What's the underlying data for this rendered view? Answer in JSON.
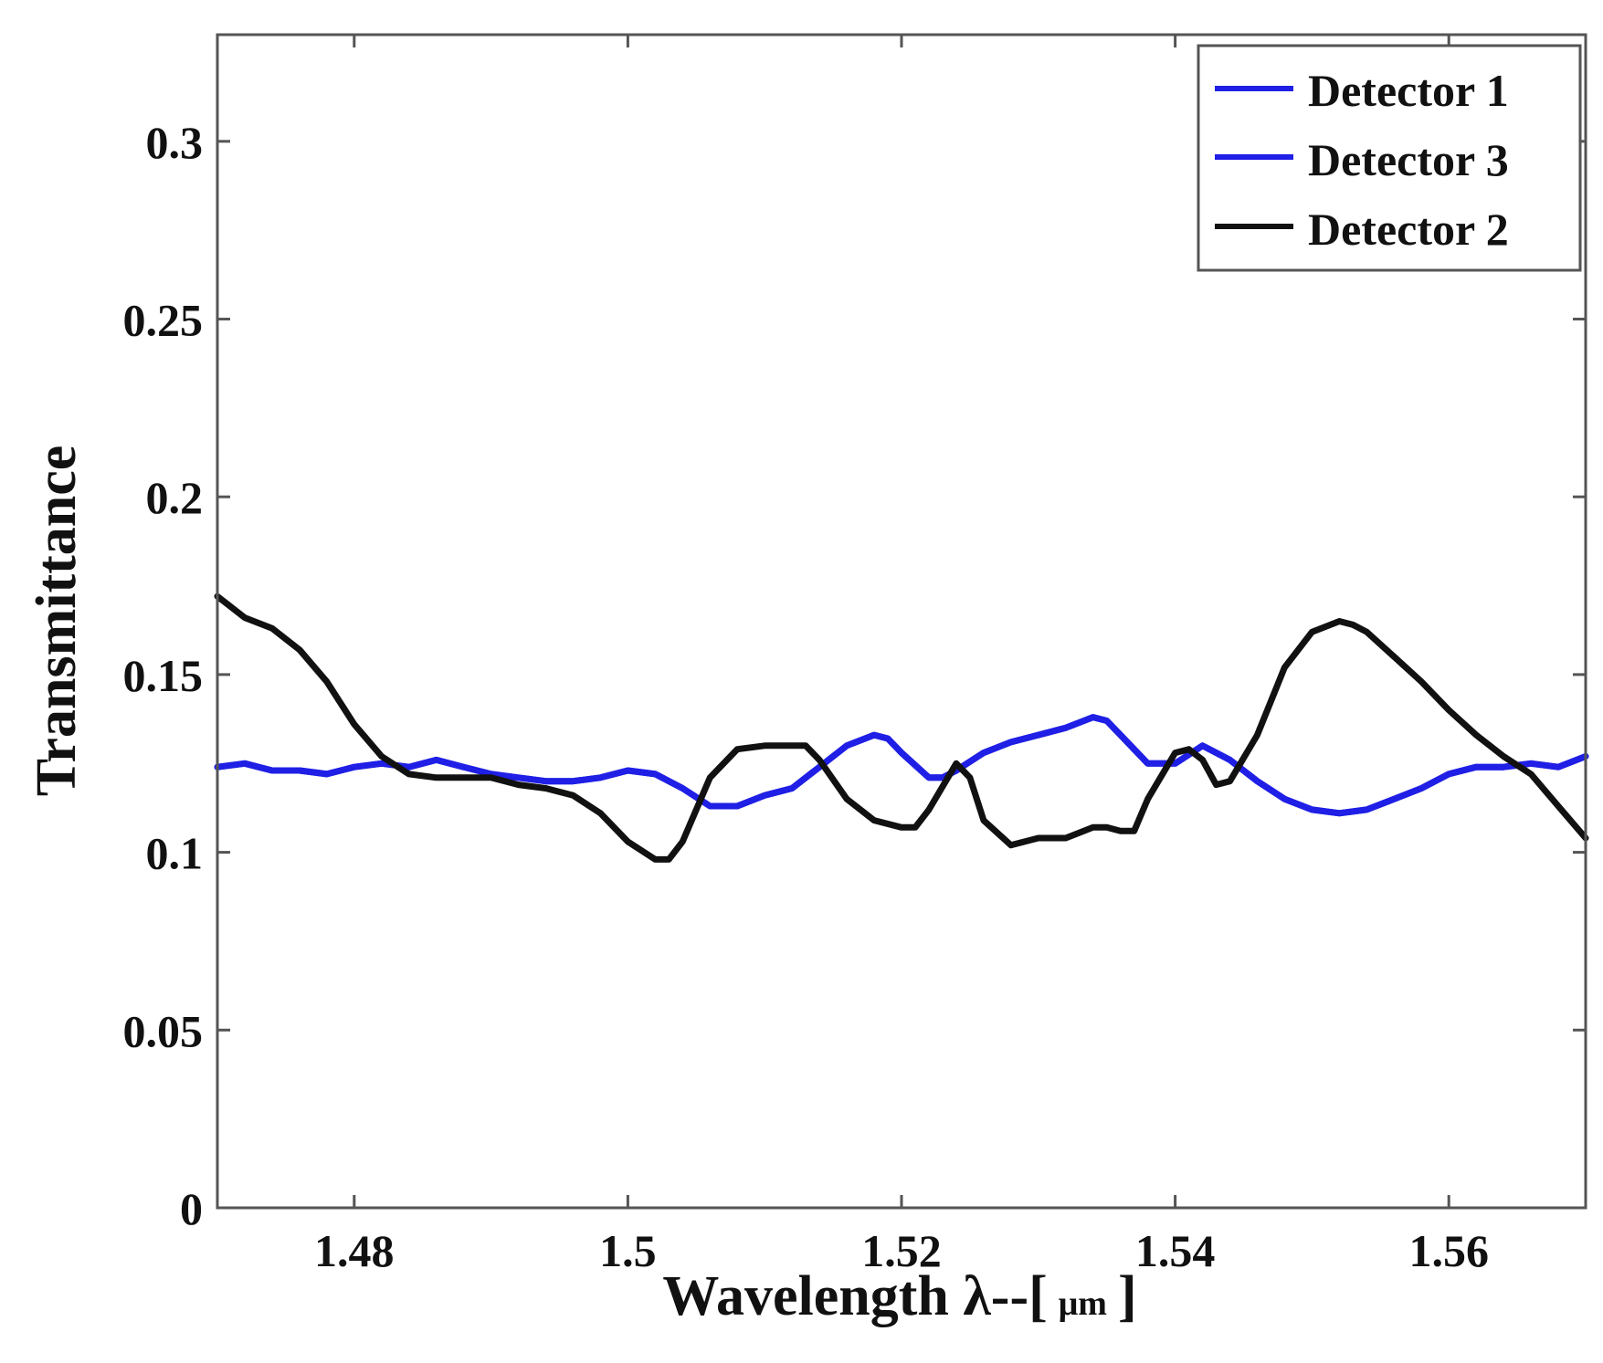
{
  "chart_data": {
    "type": "line",
    "xlabel_main": "Wavelength λ--[",
    "xlabel_unit": "μm",
    "xlabel_close": "]",
    "ylabel": "Transmittance",
    "xlim": [
      1.47,
      1.57
    ],
    "ylim": [
      0,
      0.33
    ],
    "x_ticks": [
      1.48,
      1.5,
      1.52,
      1.54,
      1.56
    ],
    "x_tick_labels": [
      "1.48",
      "1.5",
      "1.52",
      "1.54",
      "1.56"
    ],
    "y_ticks": [
      0,
      0.05,
      0.1,
      0.15,
      0.2,
      0.25,
      0.3
    ],
    "y_tick_labels": [
      "0",
      "0.05",
      "0.1",
      "0.15",
      "0.2",
      "0.25",
      "0.3"
    ],
    "grid": false,
    "legend_position": "top-right",
    "series": [
      {
        "name": "Detector 1",
        "color": "#1f1fe6",
        "x": [
          1.47,
          1.472,
          1.474,
          1.476,
          1.478,
          1.48,
          1.482,
          1.484,
          1.486,
          1.488,
          1.49,
          1.492,
          1.494,
          1.496,
          1.498,
          1.5,
          1.502,
          1.504,
          1.506,
          1.508,
          1.51,
          1.512,
          1.514,
          1.516,
          1.518,
          1.519,
          1.52,
          1.522,
          1.523,
          1.524,
          1.526,
          1.528,
          1.53,
          1.532,
          1.534,
          1.535,
          1.536,
          1.538,
          1.54,
          1.542,
          1.544,
          1.546,
          1.548,
          1.55,
          1.552,
          1.554,
          1.556,
          1.558,
          1.56,
          1.562,
          1.564,
          1.566,
          1.568,
          1.57
        ],
        "values": [
          0.124,
          0.125,
          0.123,
          0.123,
          0.122,
          0.124,
          0.125,
          0.124,
          0.126,
          0.124,
          0.122,
          0.121,
          0.12,
          0.12,
          0.121,
          0.123,
          0.122,
          0.118,
          0.113,
          0.113,
          0.116,
          0.118,
          0.124,
          0.13,
          0.133,
          0.132,
          0.128,
          0.121,
          0.121,
          0.123,
          0.128,
          0.131,
          0.133,
          0.135,
          0.138,
          0.137,
          0.133,
          0.125,
          0.125,
          0.13,
          0.126,
          0.12,
          0.115,
          0.112,
          0.111,
          0.112,
          0.115,
          0.118,
          0.122,
          0.124,
          0.124,
          0.125,
          0.124,
          0.127
        ]
      },
      {
        "name": "Detector 3",
        "color": "#1f1fe6",
        "x": [
          1.47,
          1.472,
          1.474,
          1.476,
          1.478,
          1.48,
          1.482,
          1.484,
          1.486,
          1.488,
          1.49,
          1.492,
          1.494,
          1.496,
          1.498,
          1.5,
          1.502,
          1.504,
          1.506,
          1.508,
          1.51,
          1.512,
          1.514,
          1.516,
          1.518,
          1.519,
          1.52,
          1.522,
          1.523,
          1.524,
          1.526,
          1.528,
          1.53,
          1.532,
          1.534,
          1.535,
          1.536,
          1.538,
          1.54,
          1.542,
          1.544,
          1.546,
          1.548,
          1.55,
          1.552,
          1.554,
          1.556,
          1.558,
          1.56,
          1.562,
          1.564,
          1.566,
          1.568,
          1.57
        ],
        "values": [
          0.124,
          0.125,
          0.123,
          0.123,
          0.122,
          0.124,
          0.125,
          0.124,
          0.126,
          0.124,
          0.122,
          0.121,
          0.12,
          0.12,
          0.121,
          0.123,
          0.122,
          0.118,
          0.113,
          0.113,
          0.116,
          0.118,
          0.124,
          0.13,
          0.133,
          0.132,
          0.128,
          0.121,
          0.121,
          0.123,
          0.128,
          0.131,
          0.133,
          0.135,
          0.138,
          0.137,
          0.133,
          0.125,
          0.125,
          0.13,
          0.126,
          0.12,
          0.115,
          0.112,
          0.111,
          0.112,
          0.115,
          0.118,
          0.122,
          0.124,
          0.124,
          0.125,
          0.124,
          0.127
        ]
      },
      {
        "name": "Detector 2",
        "color": "#111111",
        "x": [
          1.47,
          1.472,
          1.474,
          1.476,
          1.478,
          1.48,
          1.482,
          1.484,
          1.486,
          1.488,
          1.49,
          1.492,
          1.494,
          1.496,
          1.498,
          1.5,
          1.502,
          1.503,
          1.504,
          1.506,
          1.508,
          1.51,
          1.512,
          1.513,
          1.514,
          1.516,
          1.518,
          1.52,
          1.521,
          1.522,
          1.524,
          1.525,
          1.526,
          1.528,
          1.53,
          1.532,
          1.534,
          1.535,
          1.536,
          1.537,
          1.538,
          1.54,
          1.541,
          1.542,
          1.543,
          1.544,
          1.546,
          1.548,
          1.55,
          1.552,
          1.553,
          1.554,
          1.556,
          1.558,
          1.56,
          1.562,
          1.564,
          1.566,
          1.568,
          1.57
        ],
        "values": [
          0.172,
          0.166,
          0.163,
          0.157,
          0.148,
          0.136,
          0.127,
          0.122,
          0.121,
          0.121,
          0.121,
          0.119,
          0.118,
          0.116,
          0.111,
          0.103,
          0.098,
          0.098,
          0.103,
          0.121,
          0.129,
          0.13,
          0.13,
          0.13,
          0.126,
          0.115,
          0.109,
          0.107,
          0.107,
          0.112,
          0.125,
          0.121,
          0.109,
          0.102,
          0.104,
          0.104,
          0.107,
          0.107,
          0.106,
          0.106,
          0.115,
          0.128,
          0.129,
          0.126,
          0.119,
          0.12,
          0.133,
          0.152,
          0.162,
          0.165,
          0.164,
          0.162,
          0.155,
          0.148,
          0.14,
          0.133,
          0.127,
          0.122,
          0.113,
          0.104
        ]
      }
    ]
  }
}
